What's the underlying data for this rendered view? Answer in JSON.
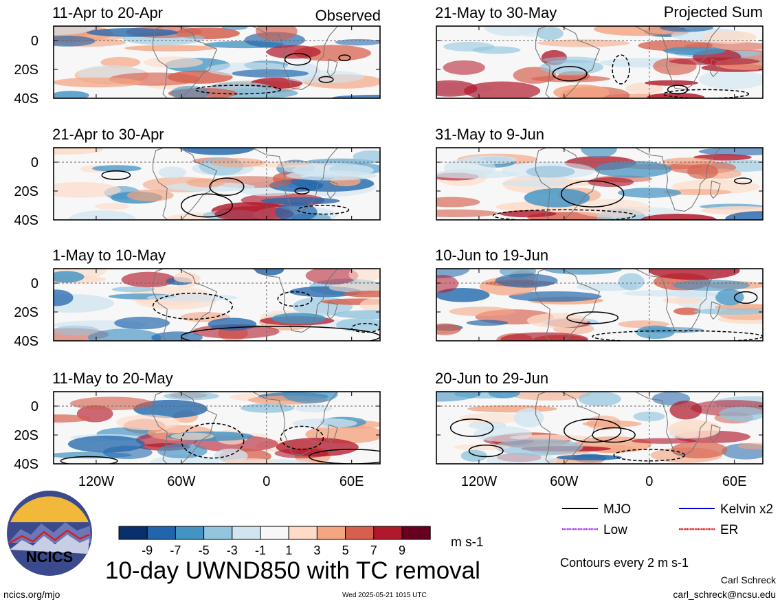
{
  "header": {
    "left_label": "Observed",
    "right_label": "Projected Sum"
  },
  "chart_data": [
    {
      "type": "heatmap",
      "layout_column": "left",
      "panel_title": "11-Apr to 20-Apr",
      "x_ticks": [
        "120W",
        "60W",
        "0",
        "60E"
      ],
      "x_tick_values": [
        -120,
        -60,
        0,
        60
      ],
      "y_ticks": [
        "0",
        "20S",
        "40S"
      ],
      "y_tick_values": [
        0,
        -20,
        -40
      ],
      "xlim": [
        -150,
        80
      ],
      "ylim": [
        -40,
        10
      ],
      "grid": "dashed lines at 0 longitude and equator",
      "seed": 11,
      "contours": [
        {
          "style": "solid",
          "lon": 22,
          "lat": -13,
          "rx": 9,
          "ry": 4
        },
        {
          "style": "solid",
          "lon": 55,
          "lat": -12,
          "rx": 4,
          "ry": 2
        },
        {
          "style": "solid",
          "lon": 42,
          "lat": -27,
          "rx": 5,
          "ry": 2
        },
        {
          "style": "dashed",
          "lon": -20,
          "lat": -34,
          "rx": 30,
          "ry": 3
        }
      ]
    },
    {
      "type": "heatmap",
      "layout_column": "left",
      "panel_title": "21-Apr to 30-Apr",
      "x_ticks": [
        "120W",
        "60W",
        "0",
        "60E"
      ],
      "x_tick_values": [
        -120,
        -60,
        0,
        60
      ],
      "y_ticks": [
        "0",
        "20S",
        "40S"
      ],
      "y_tick_values": [
        0,
        -20,
        -40
      ],
      "xlim": [
        -150,
        80
      ],
      "ylim": [
        -40,
        10
      ],
      "seed": 21,
      "contours": [
        {
          "style": "solid",
          "lon": -106,
          "lat": -9,
          "rx": 10,
          "ry": 3
        },
        {
          "style": "solid",
          "lon": -28,
          "lat": -17,
          "rx": 12,
          "ry": 6
        },
        {
          "style": "solid",
          "lon": -42,
          "lat": -30,
          "rx": 18,
          "ry": 8
        },
        {
          "style": "solid",
          "lon": 25,
          "lat": -20,
          "rx": 5,
          "ry": 2
        },
        {
          "style": "dashed",
          "lon": 40,
          "lat": -33,
          "rx": 18,
          "ry": 3
        }
      ]
    },
    {
      "type": "heatmap",
      "layout_column": "left",
      "panel_title": "1-May to 10-May",
      "x_ticks": [
        "120W",
        "60W",
        "0",
        "60E"
      ],
      "x_tick_values": [
        -120,
        -60,
        0,
        60
      ],
      "y_ticks": [
        "0",
        "20S",
        "40S"
      ],
      "y_tick_values": [
        0,
        -20,
        -40
      ],
      "xlim": [
        -150,
        80
      ],
      "ylim": [
        -40,
        10
      ],
      "seed": 31,
      "contours": [
        {
          "style": "dashed",
          "lon": -52,
          "lat": -16,
          "rx": 28,
          "ry": 9
        },
        {
          "style": "dashed",
          "lon": 20,
          "lat": -11,
          "rx": 12,
          "ry": 5
        },
        {
          "style": "dashed",
          "lon": 70,
          "lat": -31,
          "rx": 10,
          "ry": 3
        },
        {
          "style": "solid",
          "lon": 10,
          "lat": -37,
          "rx": 70,
          "ry": 7
        }
      ]
    },
    {
      "type": "heatmap",
      "layout_column": "left",
      "panel_title": "11-May to 20-May",
      "x_ticks": [
        "120W",
        "60W",
        "0",
        "60E"
      ],
      "x_tick_values": [
        -120,
        -60,
        0,
        60
      ],
      "y_ticks": [
        "0",
        "20S",
        "40S"
      ],
      "y_tick_values": [
        0,
        -20,
        -40
      ],
      "xlim": [
        -150,
        80
      ],
      "ylim": [
        -40,
        10
      ],
      "seed": 41,
      "contours": [
        {
          "style": "dashed",
          "lon": -38,
          "lat": -24,
          "rx": 22,
          "ry": 12
        },
        {
          "style": "dashed",
          "lon": 25,
          "lat": -22,
          "rx": 15,
          "ry": 8
        },
        {
          "style": "solid",
          "lon": 60,
          "lat": -35,
          "rx": 30,
          "ry": 5
        },
        {
          "style": "solid",
          "lon": -125,
          "lat": -38,
          "rx": 20,
          "ry": 3
        }
      ]
    },
    {
      "type": "heatmap",
      "layout_column": "right",
      "panel_title": "21-May to 30-May",
      "x_ticks": [
        "120W",
        "60W",
        "0",
        "60E"
      ],
      "x_tick_values": [
        -120,
        -60,
        0,
        60
      ],
      "y_ticks": [
        "0",
        "20S",
        "40S"
      ],
      "y_tick_values": [
        0,
        -20,
        -40
      ],
      "xlim": [
        -150,
        80
      ],
      "ylim": [
        -40,
        10
      ],
      "seed": 51,
      "contours": [
        {
          "style": "solid",
          "lon": -56,
          "lat": -23,
          "rx": 12,
          "ry": 5
        },
        {
          "style": "dashed",
          "lon": -20,
          "lat": -20,
          "rx": 6,
          "ry": 10
        },
        {
          "style": "solid",
          "lon": 20,
          "lat": -34,
          "rx": 7,
          "ry": 3
        },
        {
          "style": "dashed",
          "lon": 40,
          "lat": -37,
          "rx": 30,
          "ry": 3
        }
      ]
    },
    {
      "type": "heatmap",
      "layout_column": "right",
      "panel_title": "31-May to 9-Jun",
      "x_ticks": [
        "120W",
        "60W",
        "0",
        "60E"
      ],
      "x_tick_values": [
        -120,
        -60,
        0,
        60
      ],
      "y_ticks": [
        "0",
        "20S",
        "40S"
      ],
      "y_tick_values": [
        0,
        -20,
        -40
      ],
      "xlim": [
        -150,
        80
      ],
      "ylim": [
        -40,
        10
      ],
      "seed": 61,
      "contours": [
        {
          "style": "solid",
          "lon": -40,
          "lat": -22,
          "rx": 22,
          "ry": 9
        },
        {
          "style": "dashed",
          "lon": -60,
          "lat": -37,
          "rx": 50,
          "ry": 4
        },
        {
          "style": "solid",
          "lon": 66,
          "lat": -13,
          "rx": 6,
          "ry": 2
        }
      ]
    },
    {
      "type": "heatmap",
      "layout_column": "right",
      "panel_title": "10-Jun to 19-Jun",
      "x_ticks": [
        "120W",
        "60W",
        "0",
        "60E"
      ],
      "x_tick_values": [
        -120,
        -60,
        0,
        60
      ],
      "y_ticks": [
        "0",
        "20S",
        "40S"
      ],
      "y_tick_values": [
        0,
        -20,
        -40
      ],
      "xlim": [
        -150,
        80
      ],
      "ylim": [
        -40,
        10
      ],
      "seed": 71,
      "contours": [
        {
          "style": "solid",
          "lon": -40,
          "lat": -24,
          "rx": 18,
          "ry": 4
        },
        {
          "style": "solid",
          "lon": 68,
          "lat": -10,
          "rx": 8,
          "ry": 4
        },
        {
          "style": "dashed",
          "lon": 20,
          "lat": -37,
          "rx": 60,
          "ry": 4
        }
      ]
    },
    {
      "type": "heatmap",
      "layout_column": "right",
      "panel_title": "20-Jun to 29-Jun",
      "x_ticks": [
        "120W",
        "60W",
        "0",
        "60E"
      ],
      "x_tick_values": [
        -120,
        -60,
        0,
        60
      ],
      "y_ticks": [
        "0",
        "20S",
        "40S"
      ],
      "y_tick_values": [
        0,
        -20,
        -40
      ],
      "xlim": [
        -150,
        80
      ],
      "ylim": [
        -40,
        10
      ],
      "seed": 81,
      "contours": [
        {
          "style": "solid",
          "lon": -125,
          "lat": -15,
          "rx": 15,
          "ry": 6
        },
        {
          "style": "solid",
          "lon": -115,
          "lat": -31,
          "rx": 12,
          "ry": 4
        },
        {
          "style": "solid",
          "lon": -40,
          "lat": -17,
          "rx": 20,
          "ry": 8
        },
        {
          "style": "solid",
          "lon": -25,
          "lat": -20,
          "rx": 15,
          "ry": 5
        },
        {
          "style": "dashed",
          "lon": 0,
          "lat": -34,
          "rx": 25,
          "ry": 4
        }
      ]
    }
  ],
  "colorbar": {
    "colors": [
      "#08306b",
      "#2166ac",
      "#4393c3",
      "#92c5de",
      "#d1e5f0",
      "#f7f7f7",
      "#fddbc7",
      "#f4a582",
      "#d6604d",
      "#b2182b",
      "#67001f"
    ],
    "labels": [
      "-9",
      "-7",
      "-5",
      "-3",
      "-1",
      "1",
      "3",
      "5",
      "7",
      "9"
    ],
    "units": "m s-1"
  },
  "title": "10-day UWND850 with TC removal",
  "legend": [
    {
      "label": "MJO",
      "color": "#000000"
    },
    {
      "label": "Kelvin x2",
      "color": "#0000cc"
    },
    {
      "label": "Low",
      "color": "#a020f0"
    },
    {
      "label": "ER",
      "color": "#dd0000"
    }
  ],
  "contour_note": "Contours every 2 m s-1",
  "logo": {
    "text": "NCICS"
  },
  "footer": {
    "site": "ncics.org/mjo",
    "timestamp": "Wed 2025-05-21 1015 UTC",
    "author": "Carl Schreck",
    "email": "carl_schreck@ncsu.edu"
  }
}
